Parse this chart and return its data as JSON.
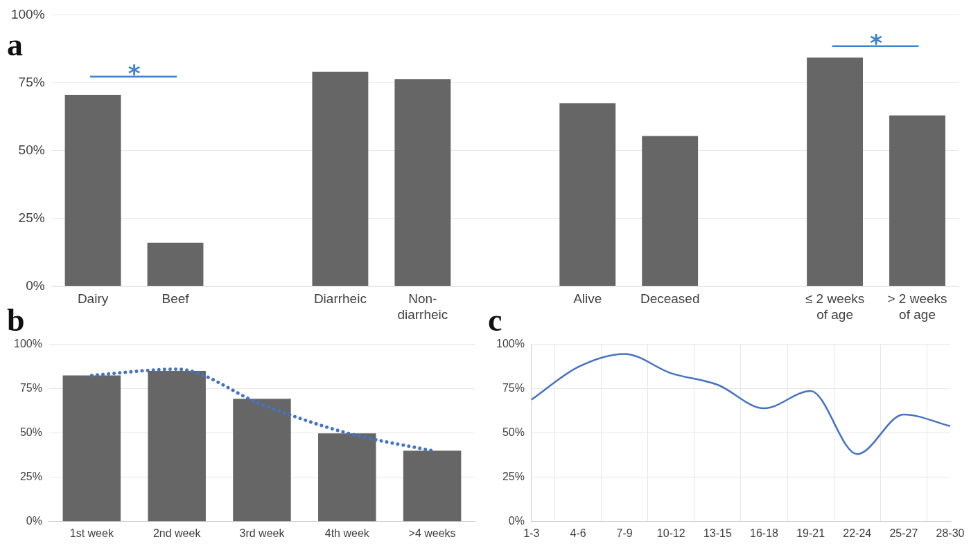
{
  "chart_data": [
    {
      "type": "bar",
      "title": "a",
      "categories": [
        "Dairy",
        "Beef",
        null,
        "Diarrheic",
        "Non-diarrheic",
        null,
        "Alive",
        "Deceased",
        null,
        "≤ 2 weeks of age",
        "> 2 weeks of age"
      ],
      "values": [
        70.5,
        16,
        null,
        79,
        76.3,
        null,
        67.4,
        55.3,
        null,
        84.2,
        62.9
      ],
      "color": "#666666",
      "ylim": [
        0,
        100
      ],
      "yticks": [
        {
          "value": 0,
          "label": "0%"
        },
        {
          "value": 25,
          "label": "25%"
        },
        {
          "value": 50,
          "label": "50%"
        },
        {
          "value": 75,
          "label": "75%"
        },
        {
          "value": 100,
          "label": "100%"
        }
      ],
      "grid": "y",
      "annotations": [
        "*",
        "*"
      ]
    },
    {
      "type": "bar",
      "title": "b",
      "categories": [
        "1st week",
        "2nd week",
        "3rd week",
        "4th week",
        ">4 weeks"
      ],
      "series": [
        {
          "type": "bar",
          "color": "#666666",
          "values": [
            82.5,
            85,
            69.3,
            49.8,
            40
          ]
        },
        {
          "type": "line",
          "color": "#4472c4",
          "values": [
            82.5,
            86,
            66,
            50,
            40
          ]
        }
      ],
      "line_style": "dotted",
      "marker": "none",
      "ylim": [
        0,
        100
      ],
      "yticks": [
        {
          "value": 0,
          "label": "0%"
        },
        {
          "value": 25,
          "label": "25%"
        },
        {
          "value": 50,
          "label": "50%"
        },
        {
          "value": 75,
          "label": "75%"
        },
        {
          "value": 100,
          "label": "100%"
        }
      ],
      "grid": "y"
    },
    {
      "type": "line",
      "title": "c",
      "categories": [
        "1-3",
        "4-6",
        "7-9",
        "10-12",
        "13-15",
        "16-18",
        "19-21",
        "22-24",
        "25-27",
        "28-30"
      ],
      "values": [
        68.8,
        87.2,
        94.6,
        83.7,
        77.2,
        63.9,
        73.7,
        38.1,
        60.4,
        53.9
      ],
      "color": "#4472c4",
      "marker": "none",
      "line_style": "solid",
      "ylim": [
        0,
        100
      ],
      "yticks": [
        {
          "value": 0,
          "label": "0%"
        },
        {
          "value": 25,
          "label": "25%"
        },
        {
          "value": 50,
          "label": "50%"
        },
        {
          "value": 75,
          "label": "75%"
        },
        {
          "value": 100,
          "label": "100%"
        }
      ],
      "grid": true
    }
  ]
}
